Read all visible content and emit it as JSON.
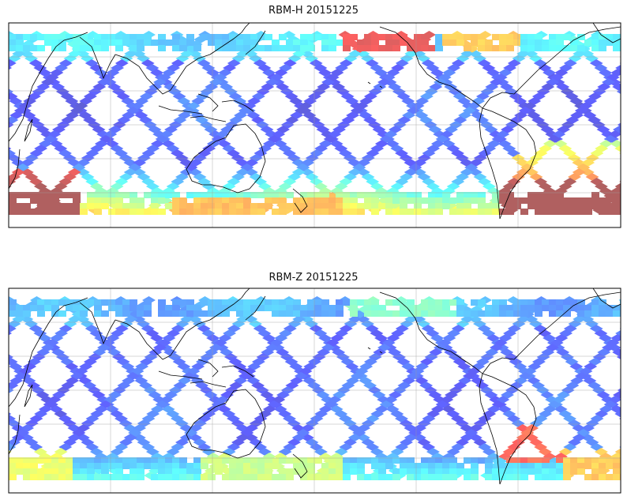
{
  "figure": {
    "panels": [
      {
        "id": "top",
        "title": "RBM-H 20151225",
        "colormap": "jet",
        "alpha": 0.6,
        "hot_regions": [
          "north-pacific-date-line",
          "southern-ocean-south-atlantic",
          "southern-ocean-indian",
          "southern-ocean-pacific"
        ]
      },
      {
        "id": "bottom",
        "title": "RBM-Z 20151225",
        "colormap": "jet",
        "alpha": 0.6,
        "hot_regions": [
          "south-america-east-coast",
          "southern-ocean-indian"
        ]
      }
    ],
    "map": {
      "projection": "plate-carree",
      "central_longitude": 180,
      "grid": true,
      "coastlines": true,
      "lat_range": [
        -60,
        60
      ]
    }
  }
}
